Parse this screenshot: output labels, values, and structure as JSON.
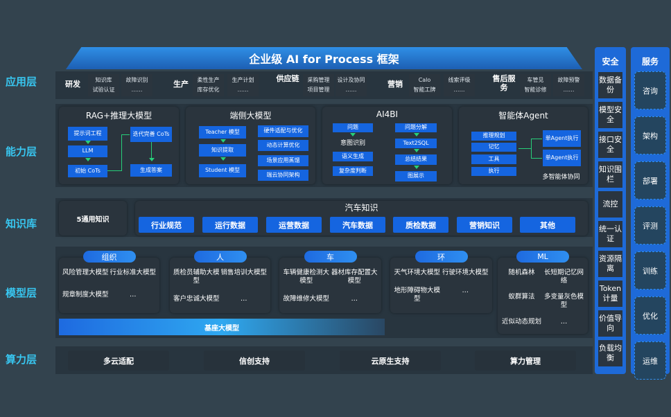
{
  "title": "企业级 AI for Process 框架",
  "layers": [
    "应用层",
    "能力层",
    "知识库",
    "模型层",
    "算力层"
  ],
  "app": [
    {
      "name": "研发",
      "boxes": [
        [
          "知识库",
          "试验认证"
        ],
        [
          "故障识别",
          "……"
        ]
      ]
    },
    {
      "name": "生产",
      "boxes": [
        [
          "柔性生产",
          "库存优化"
        ],
        [
          "生产计划",
          "……"
        ]
      ]
    },
    {
      "name": "供应链",
      "boxes": [
        [
          "采购管理",
          "项目管理"
        ],
        [
          "设计及协同",
          "……"
        ]
      ]
    },
    {
      "name": "营销",
      "boxes": [
        [
          "Calo",
          "智能工牌"
        ],
        [
          "线索评级",
          "……"
        ]
      ]
    },
    {
      "name": "售后服务",
      "boxes": [
        [
          "车管见",
          "智能诊修"
        ],
        [
          "故障预警",
          "……"
        ]
      ]
    }
  ],
  "capability": [
    {
      "title": "RAG+推理大模型",
      "items": [
        "提示词工程",
        "LLM",
        "初始 CoTs",
        "迭代完善 CoTs",
        "生成答案"
      ]
    },
    {
      "title": "端侧大模型",
      "items": [
        "Teacher 模型",
        "知识提取",
        "Student 模型",
        "硬件适配与优化",
        "动态计算优化",
        "场景应用蒸馏",
        "端云协同架构"
      ]
    },
    {
      "title": "AI4BI",
      "items": [
        "问题",
        "意图识别",
        "语义生成",
        "复杂度判断",
        "问题分解",
        "Text2SQL",
        "总结结果",
        "图展示"
      ]
    },
    {
      "title": "智能体Agent",
      "items": [
        "推理规划",
        "记忆",
        "工具",
        "执行",
        "单Agent执行",
        "单Agent执行",
        "多智能体协同"
      ]
    }
  ],
  "knowledge": {
    "general": "5通用知识",
    "auto_title": "汽车知识",
    "buttons": [
      "行业规范",
      "运行数据",
      "运营数据",
      "汽车数据",
      "质检数据",
      "营销知识",
      "其他"
    ]
  },
  "models": {
    "groups": [
      {
        "name": "组织",
        "items": [
          "风险管理大模型",
          "行业标准大模型",
          "规章制度大模型",
          "…"
        ]
      },
      {
        "name": "人",
        "items": [
          "质检员辅助大模型",
          "销售培训大模型",
          "客户忠诚大模型",
          "…"
        ]
      },
      {
        "name": "车",
        "items": [
          "车辆健康检测大模型",
          "器材库存配置大模型",
          "故障维修大模型",
          "…"
        ]
      },
      {
        "name": "环",
        "items": [
          "天气环境大模型",
          "行驶环境大模型",
          "地形障碍物大模型",
          "…"
        ]
      },
      {
        "name": "ML",
        "items": [
          "随机森林",
          "长短期记忆网络",
          "蚁群算法",
          "多变量灰色模型",
          "近似动态规划",
          "…"
        ]
      }
    ],
    "base": "基座大模型"
  },
  "compute": [
    "多云适配",
    "信创支持",
    "云原生支持",
    "算力管理"
  ],
  "security": {
    "title": "安全",
    "items": [
      "数据备份",
      "模型安全",
      "接口安全",
      "知识围栏",
      "流控",
      "统一认证",
      "资源隔离",
      "Token计量",
      "价值导向",
      "负载均衡"
    ]
  },
  "service": {
    "title": "服务",
    "items": [
      "咨询",
      "架构",
      "部署",
      "评测",
      "训练",
      "优化",
      "运维"
    ]
  },
  "colors": {
    "accent": "#1565e0",
    "label": "#38c6f0",
    "background": "#33434e",
    "arrow": "#27d07a"
  }
}
